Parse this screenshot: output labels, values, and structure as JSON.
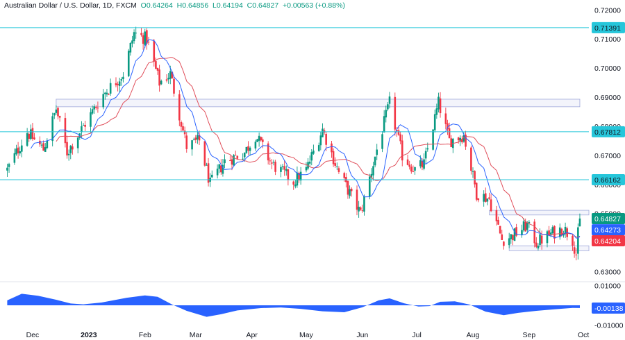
{
  "header": {
    "symbol": "Australian Dollar / U.S. Dollar, 1D, FXCM",
    "open": "O0.64264",
    "high": "H0.64856",
    "low": "L0.64194",
    "close": "C0.64827",
    "change": "+0.00563 (+0.88%)"
  },
  "colors": {
    "up": "#089981",
    "down": "#f23645",
    "sma_fast": "#2962ff",
    "sma_slow": "#e04e5a",
    "level_line": "#26c6da",
    "osc_fill": "#2962ff",
    "zone_border": "#9fa8da"
  },
  "chart_data": [
    {
      "type": "candlestick",
      "instrument": "AUD/USD",
      "timeframe": "1D",
      "x_ticks": [
        "Dec",
        "2023",
        "Feb",
        "Mar",
        "Apr",
        "May",
        "Jun",
        "Jul",
        "Aug",
        "Sep",
        "Oct"
      ],
      "y_ticks": [
        "0.72000",
        "0.71000",
        "0.70000",
        "0.69000",
        "0.68000",
        "0.67000",
        "0.66000",
        "0.65000",
        "0.64000",
        "0.63000"
      ],
      "ylim": [
        0.6275,
        0.7215
      ],
      "price_path": [
        {
          "date": "2022-11-17",
          "close": 0.665
        },
        {
          "date": "2022-11-28",
          "close": 0.678
        },
        {
          "date": "2022-12-07",
          "close": 0.672
        },
        {
          "date": "2022-12-14",
          "close": 0.686
        },
        {
          "date": "2022-12-20",
          "close": 0.671
        },
        {
          "date": "2022-12-29",
          "close": 0.68
        },
        {
          "date": "2023-01-09",
          "close": 0.691
        },
        {
          "date": "2023-01-20",
          "close": 0.698
        },
        {
          "date": "2023-01-26",
          "close": 0.712
        },
        {
          "date": "2023-02-02",
          "close": 0.71
        },
        {
          "date": "2023-02-09",
          "close": 0.695
        },
        {
          "date": "2023-02-15",
          "close": 0.698
        },
        {
          "date": "2023-02-24",
          "close": 0.673
        },
        {
          "date": "2023-03-03",
          "close": 0.675
        },
        {
          "date": "2023-03-09",
          "close": 0.66
        },
        {
          "date": "2023-03-17",
          "close": 0.668
        },
        {
          "date": "2023-03-28",
          "close": 0.671
        },
        {
          "date": "2023-04-03",
          "close": 0.677
        },
        {
          "date": "2023-04-12",
          "close": 0.667
        },
        {
          "date": "2023-04-24",
          "close": 0.661
        },
        {
          "date": "2023-05-01",
          "close": 0.665
        },
        {
          "date": "2023-05-10",
          "close": 0.679
        },
        {
          "date": "2023-05-19",
          "close": 0.664
        },
        {
          "date": "2023-05-31",
          "close": 0.65
        },
        {
          "date": "2023-06-09",
          "close": 0.672
        },
        {
          "date": "2023-06-16",
          "close": 0.688
        },
        {
          "date": "2023-06-23",
          "close": 0.67
        },
        {
          "date": "2023-06-30",
          "close": 0.665
        },
        {
          "date": "2023-07-05",
          "close": 0.667
        },
        {
          "date": "2023-07-13",
          "close": 0.688
        },
        {
          "date": "2023-07-19",
          "close": 0.675
        },
        {
          "date": "2023-07-27",
          "close": 0.677
        },
        {
          "date": "2023-08-03",
          "close": 0.657
        },
        {
          "date": "2023-08-10",
          "close": 0.655
        },
        {
          "date": "2023-08-17",
          "close": 0.641
        },
        {
          "date": "2023-08-22",
          "close": 0.642
        },
        {
          "date": "2023-08-31",
          "close": 0.646
        },
        {
          "date": "2023-09-05",
          "close": 0.64
        },
        {
          "date": "2023-09-13",
          "close": 0.643
        },
        {
          "date": "2023-09-20",
          "close": 0.645
        },
        {
          "date": "2023-09-25",
          "close": 0.641
        },
        {
          "date": "2023-09-27",
          "close": 0.636
        },
        {
          "date": "2023-09-28",
          "close": 0.643
        },
        {
          "date": "2023-09-29",
          "close": 0.64827
        }
      ],
      "horizontal_levels": [
        {
          "price": 0.71391,
          "tag": "0.71391"
        },
        {
          "price": 0.67812,
          "tag": "0.67812"
        },
        {
          "price": 0.66162,
          "tag": "0.66162"
        }
      ],
      "zones": [
        {
          "from": "2022-12-14",
          "to": "2023-09-29",
          "top": 0.6893,
          "bottom": 0.6867
        },
        {
          "from": "2023-08-10",
          "to": "2023-10-04",
          "top": 0.6511,
          "bottom": 0.6495
        },
        {
          "from": "2023-08-21",
          "to": "2023-10-04",
          "top": 0.6389,
          "bottom": 0.6372
        }
      ],
      "price_tags": [
        {
          "value": "0.64827",
          "role": "last"
        },
        {
          "value": "0.64273",
          "role": "sma_fast"
        },
        {
          "value": "0.64204",
          "role": "sma_slow"
        }
      ]
    },
    {
      "type": "area",
      "pane": "oscillator",
      "y_ticks": [
        "0.01000",
        "0.00000",
        "-0.01000"
      ],
      "ylim": [
        -0.0105,
        0.0105
      ],
      "current_tag": "-0.00138",
      "points": [
        {
          "date": "2022-11-17",
          "value": 0.0025
        },
        {
          "date": "2022-11-25",
          "value": 0.0058
        },
        {
          "date": "2022-12-04",
          "value": 0.0048
        },
        {
          "date": "2022-12-14",
          "value": 0.0028
        },
        {
          "date": "2022-12-22",
          "value": 0.0009
        },
        {
          "date": "2022-12-29",
          "value": 0.0005
        },
        {
          "date": "2023-01-08",
          "value": 0.0014
        },
        {
          "date": "2023-01-22",
          "value": 0.0038
        },
        {
          "date": "2023-02-01",
          "value": 0.005
        },
        {
          "date": "2023-02-08",
          "value": 0.0043
        },
        {
          "date": "2023-02-16",
          "value": 0.0004
        },
        {
          "date": "2023-02-24",
          "value": -0.0028
        },
        {
          "date": "2023-03-07",
          "value": -0.0058
        },
        {
          "date": "2023-03-15",
          "value": -0.0045
        },
        {
          "date": "2023-03-24",
          "value": -0.0026
        },
        {
          "date": "2023-04-06",
          "value": -0.0014
        },
        {
          "date": "2023-04-17",
          "value": -0.0011
        },
        {
          "date": "2023-04-28",
          "value": -0.0018
        },
        {
          "date": "2023-05-10",
          "value": -0.003
        },
        {
          "date": "2023-05-22",
          "value": -0.0035
        },
        {
          "date": "2023-06-01",
          "value": -0.001
        },
        {
          "date": "2023-06-10",
          "value": 0.0025
        },
        {
          "date": "2023-06-16",
          "value": 0.0035
        },
        {
          "date": "2023-06-24",
          "value": 0.001
        },
        {
          "date": "2023-07-02",
          "value": -0.0006
        },
        {
          "date": "2023-07-08",
          "value": -0.0004
        },
        {
          "date": "2023-07-14",
          "value": 0.0018
        },
        {
          "date": "2023-07-22",
          "value": 0.002
        },
        {
          "date": "2023-07-30",
          "value": 0.0004
        },
        {
          "date": "2023-08-08",
          "value": -0.0032
        },
        {
          "date": "2023-08-18",
          "value": -0.005
        },
        {
          "date": "2023-08-26",
          "value": -0.0038
        },
        {
          "date": "2023-09-05",
          "value": -0.0028
        },
        {
          "date": "2023-09-15",
          "value": -0.002
        },
        {
          "date": "2023-09-25",
          "value": -0.0013
        },
        {
          "date": "2023-09-29",
          "value": -0.00138
        }
      ]
    }
  ]
}
